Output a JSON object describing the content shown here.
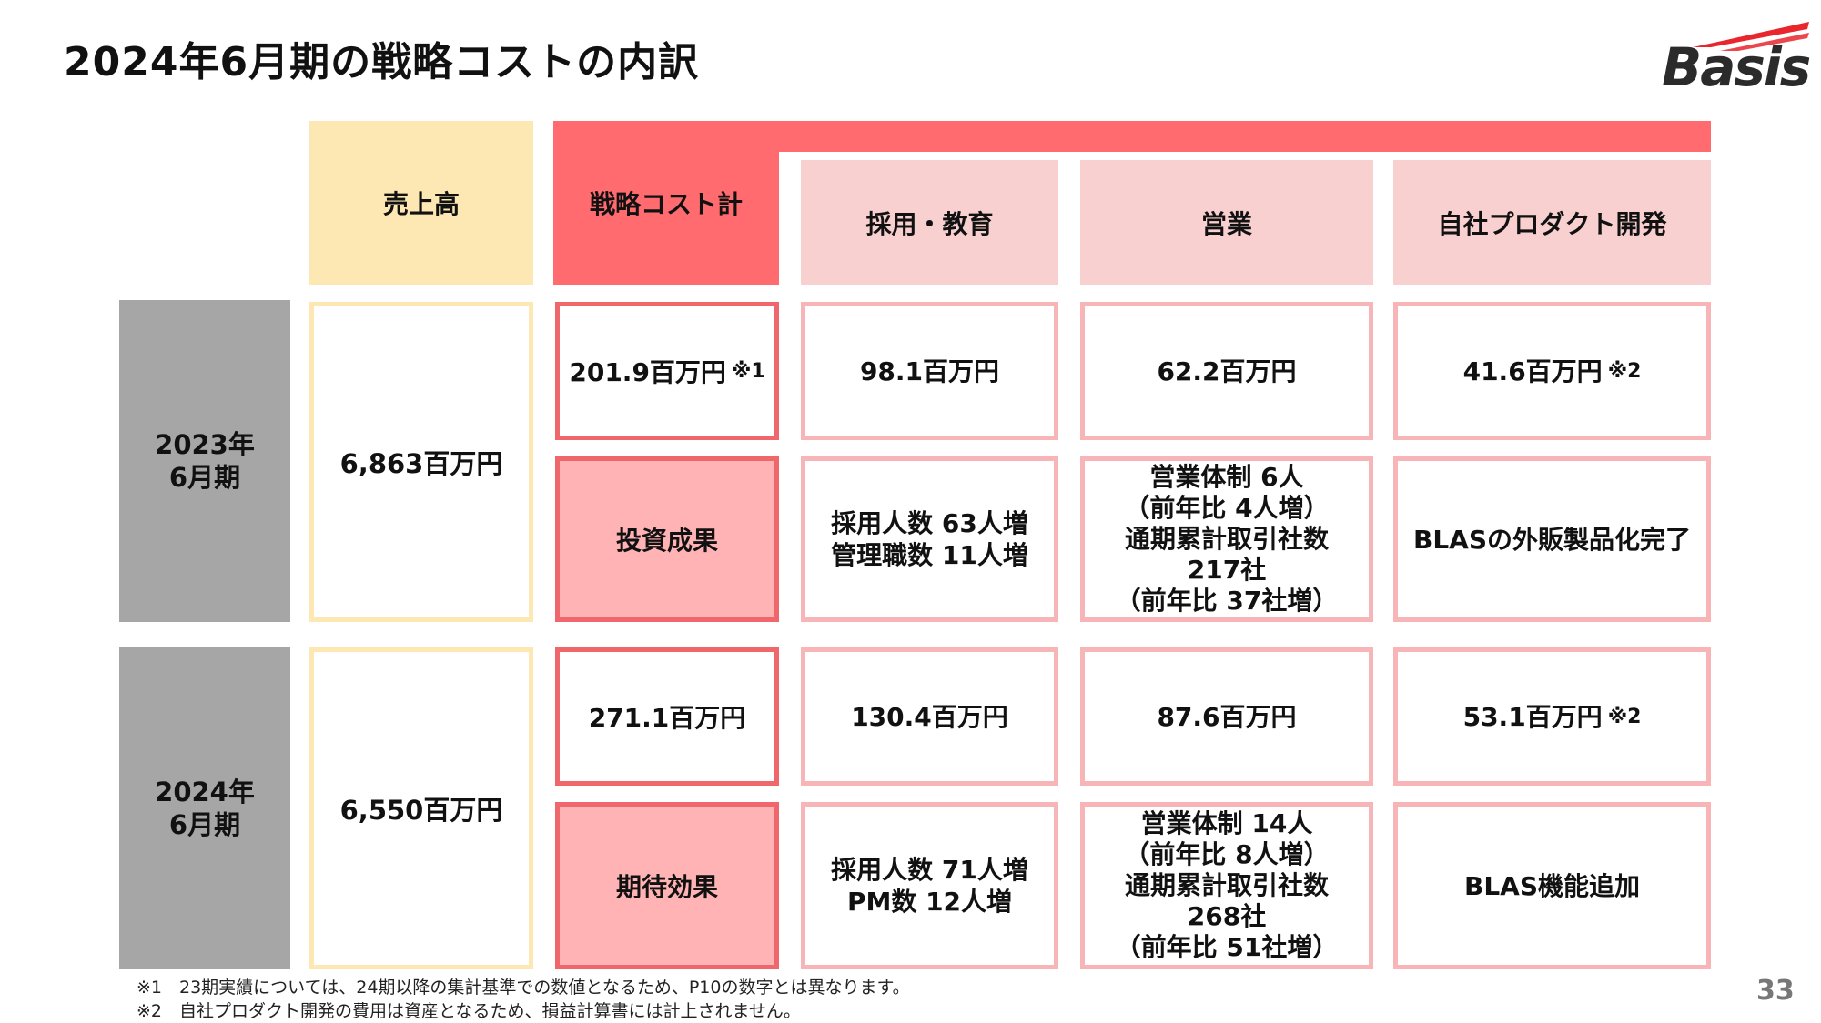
{
  "title": "2024年6月期の戦略コストの内訳",
  "logo": {
    "text": "Basis",
    "accent_color": "#e8262b"
  },
  "headers": {
    "sales": "売上高",
    "strategic_total": "戦略コスト計",
    "recruit": "採用・教育",
    "sales_dept": "営業",
    "product": "自社プロダクト開発"
  },
  "rows": [
    {
      "label_line1": "2023年",
      "label_line2": "6月期",
      "sales": "6,863百万円",
      "strategic_total": "201.9百万円",
      "strategic_total_note": "※1",
      "effect_label": "投資成果",
      "recruit_cost": "98.1百万円",
      "sales_cost": "62.2百万円",
      "product_cost": "41.6百万円",
      "product_cost_note": "※2",
      "recruit_effect": [
        "採用人数 63人増",
        "管理職数 11人増"
      ],
      "sales_effect": [
        "営業体制 6人",
        "（前年比 4人増）",
        "通期累計取引社数",
        "217社",
        "（前年比 37社増）"
      ],
      "product_effect": [
        "BLASの外販製品化完了"
      ]
    },
    {
      "label_line1": "2024年",
      "label_line2": "6月期",
      "sales": "6,550百万円",
      "strategic_total": "271.1百万円",
      "strategic_total_note": "",
      "effect_label": "期待効果",
      "recruit_cost": "130.4百万円",
      "sales_cost": "87.6百万円",
      "product_cost": "53.1百万円",
      "product_cost_note": "※2",
      "recruit_effect": [
        "採用人数 71人増",
        "PM数 12人増"
      ],
      "sales_effect": [
        "営業体制 14人",
        "（前年比 8人増）",
        "通期累計取引社数",
        "268社",
        "（前年比 51社増）"
      ],
      "product_effect": [
        "BLAS機能追加"
      ]
    }
  ],
  "footnotes": [
    "※1　23期実績については、24期以降の集計基準での数値となるため、P10の数字とは異なります。",
    "※2　自社プロダクト開発の費用は資産となるため、損益計算書には計上されません。"
  ],
  "page_number": "33",
  "colors": {
    "sales_header": "#fde8b4",
    "strategic": "#ff6b6e",
    "sub_header": "#f9d0d0",
    "effect_fill": "#ffb3b4",
    "row_label": "#a6a6a6"
  }
}
